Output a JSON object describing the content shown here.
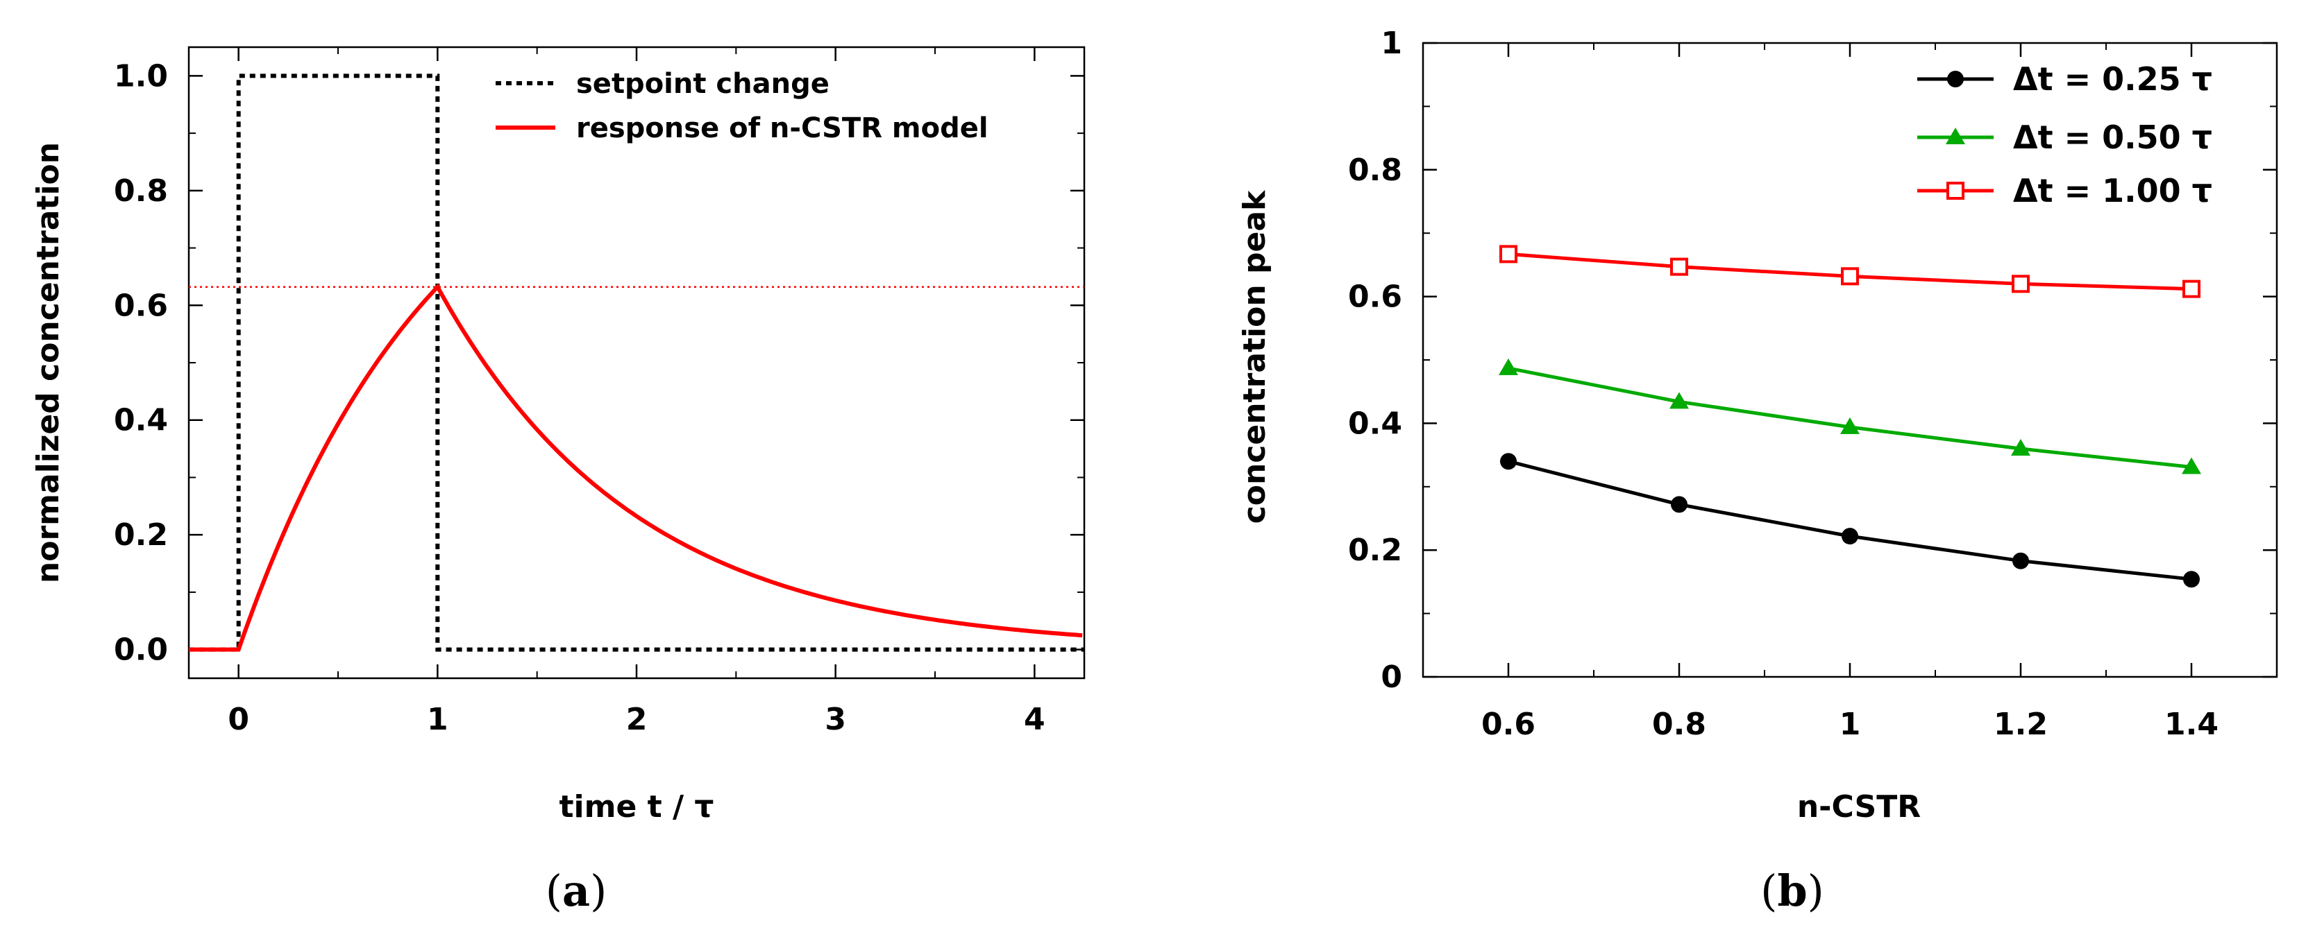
{
  "chart_data": [
    {
      "type": "line",
      "panel_label": "a",
      "xlabel": "time t / τ",
      "ylabel": "normalized concentration",
      "xlim": [
        -0.25,
        4.25
      ],
      "ylim": [
        -0.05,
        1.05
      ],
      "xticks": [
        "0",
        "1",
        "2",
        "3",
        "4"
      ],
      "xtick_values": [
        0,
        1,
        2,
        3,
        4
      ],
      "yticks": [
        "0.0",
        "0.2",
        "0.4",
        "0.6",
        "0.8",
        "1.0"
      ],
      "ytick_values": [
        0,
        0.2,
        0.4,
        0.6,
        0.8,
        1.0
      ],
      "legend_position": "top-right",
      "series": [
        {
          "name": "setpoint change",
          "color": "#000000",
          "style": "dotted",
          "x": [
            -0.25,
            0,
            0,
            1,
            1,
            4.25
          ],
          "y": [
            0,
            0,
            1,
            1,
            0,
            0
          ]
        },
        {
          "name": "response of n-CSTR model",
          "color": "#ff0000",
          "style": "solid",
          "model": "1-exp(-t) for 0<=t<=1, (1-exp(-1))*exp(-(t-1)) for t>1",
          "x": [
            -0.25,
            0,
            0.25,
            0.5,
            0.75,
            1,
            1.5,
            2,
            2.5,
            3,
            3.5,
            4,
            4.25
          ],
          "y": [
            0,
            0,
            0.221,
            0.393,
            0.528,
            0.632,
            0.383,
            0.233,
            0.141,
            0.086,
            0.052,
            0.031,
            0.025
          ]
        }
      ],
      "reference_line": {
        "y": 0.632,
        "color": "#ff0000",
        "style": "dotted"
      }
    },
    {
      "type": "line",
      "panel_label": "b",
      "xlabel": "n-CSTR",
      "ylabel": "concentration peak",
      "xlim": [
        0.5,
        1.5
      ],
      "ylim": [
        0,
        1
      ],
      "categories": [
        "0.6",
        "0.8",
        "1",
        "1.2",
        "1.4"
      ],
      "x": [
        0.6,
        0.8,
        1.0,
        1.2,
        1.4
      ],
      "yticks": [
        "0",
        "0.2",
        "0.4",
        "0.6",
        "0.8",
        "1"
      ],
      "ytick_values": [
        0,
        0.2,
        0.4,
        0.6,
        0.8,
        1.0
      ],
      "legend_position": "top-right",
      "series": [
        {
          "name": "Δt = 0.25 τ",
          "color": "#000000",
          "marker": "circle",
          "values": [
            0.34,
            0.272,
            0.222,
            0.183,
            0.154
          ]
        },
        {
          "name": "Δt = 0.50 τ",
          "color": "#00aa00",
          "marker": "triangle",
          "values": [
            0.487,
            0.434,
            0.394,
            0.36,
            0.331
          ]
        },
        {
          "name": "Δt = 1.00 τ",
          "color": "#ff0000",
          "marker": "open-square",
          "values": [
            0.667,
            0.647,
            0.632,
            0.62,
            0.612
          ]
        }
      ]
    }
  ],
  "captions": {
    "left": "(a)",
    "left_letter": "a",
    "right": "(b)",
    "right_letter": "b"
  }
}
